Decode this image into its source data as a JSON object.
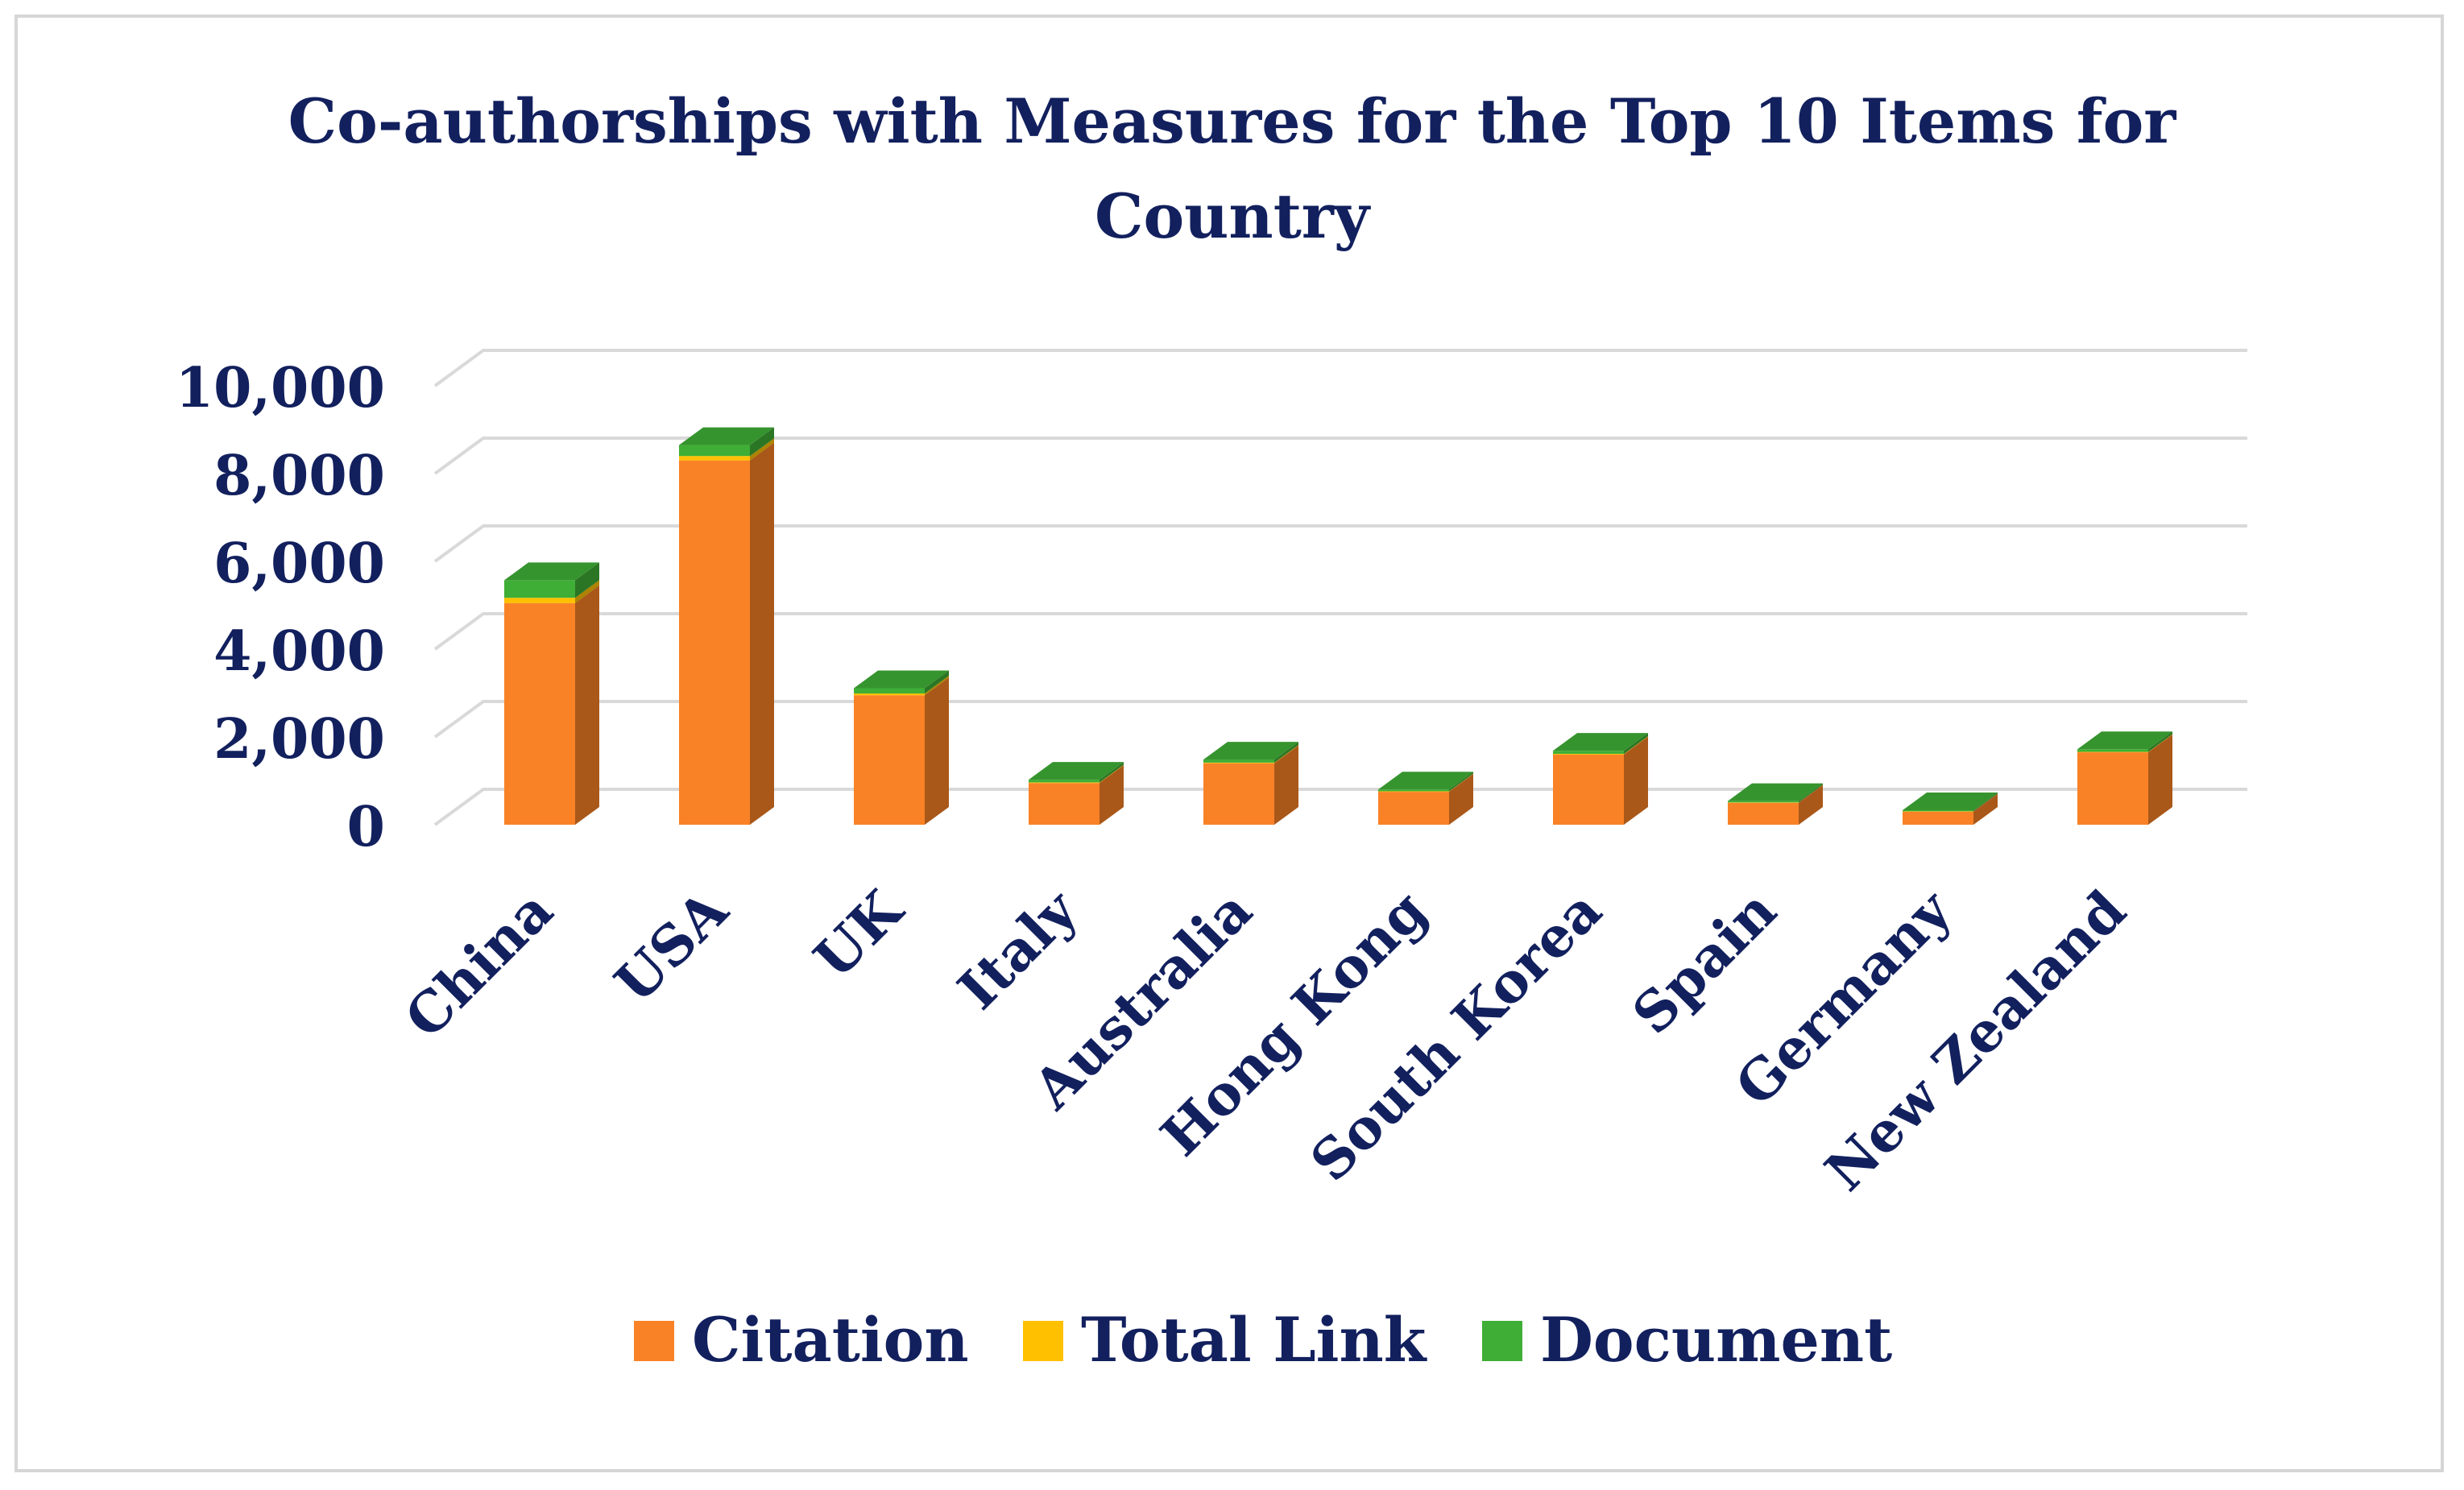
{
  "chart_data": {
    "type": "bar",
    "stacked": true,
    "three_d": true,
    "title": "Co-authorships with Measures for the Top 10 Items for Country",
    "title_lines": [
      "Co-authorships with Measures for the Top 10 Items for",
      "Country"
    ],
    "xlabel": "",
    "ylabel": "",
    "ylim": [
      0,
      10000
    ],
    "yticks": [
      0,
      2000,
      4000,
      6000,
      8000,
      10000
    ],
    "ytick_labels": [
      "0",
      "2,000",
      "4,000",
      "6,000",
      "8,000",
      "10,000"
    ],
    "grid": true,
    "legend_position": "bottom",
    "categories": [
      "China",
      "USA",
      "UK",
      "Italy",
      "Australia",
      "Hong Kong",
      "South Korea",
      "Spain",
      "Germany",
      "New Zealand"
    ],
    "series": [
      {
        "name": "Citation",
        "color": "#f98226",
        "values": [
          5050,
          8300,
          2950,
          950,
          1400,
          750,
          1600,
          500,
          300,
          1650
        ]
      },
      {
        "name": "Total Link",
        "color": "#ffc000",
        "values": [
          120,
          100,
          40,
          15,
          15,
          12,
          15,
          8,
          6,
          10
        ]
      },
      {
        "name": "Document",
        "color": "#3fae36",
        "values": [
          400,
          250,
          120,
          60,
          70,
          40,
          70,
          30,
          25,
          60
        ]
      }
    ]
  }
}
